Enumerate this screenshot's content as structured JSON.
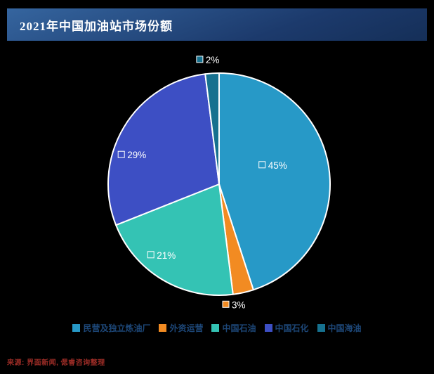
{
  "header": {
    "title": "2021年中国加油站市场份额"
  },
  "footer": {
    "source": "来源: 界面新闻, 偲睿咨询整理"
  },
  "colors": {
    "background": "#000000",
    "header_gradient_start": "#35659F",
    "header_gradient_mid": "#1C3A6C",
    "header_gradient_end": "#152F58",
    "title_text": "#FFFFFF",
    "legend_text": "#1D4778",
    "source_text": "#9B2C26",
    "slice_border": "#FFFFFF",
    "label_text": "#FFFFFF"
  },
  "chart_data": {
    "type": "pie",
    "title": "2021年中国加油站市场份额",
    "unit": "%",
    "start_angle_deg": 0,
    "direction": "clockwise",
    "legend_position": "bottom",
    "label_color": "#FFFFFF",
    "series": [
      {
        "name": "民营及独立炼油厂",
        "value": 45,
        "label": "45%",
        "color": "#2799C7"
      },
      {
        "name": "外资运营",
        "value": 3,
        "label": "3%",
        "color": "#F28B22"
      },
      {
        "name": "中国石油",
        "value": 21,
        "label": "21%",
        "color": "#34C3B4"
      },
      {
        "name": "中国石化",
        "value": 29,
        "label": "29%",
        "color": "#3D4FC4"
      },
      {
        "name": "中国海油",
        "value": 2,
        "label": "2%",
        "color": "#16718F"
      }
    ]
  }
}
